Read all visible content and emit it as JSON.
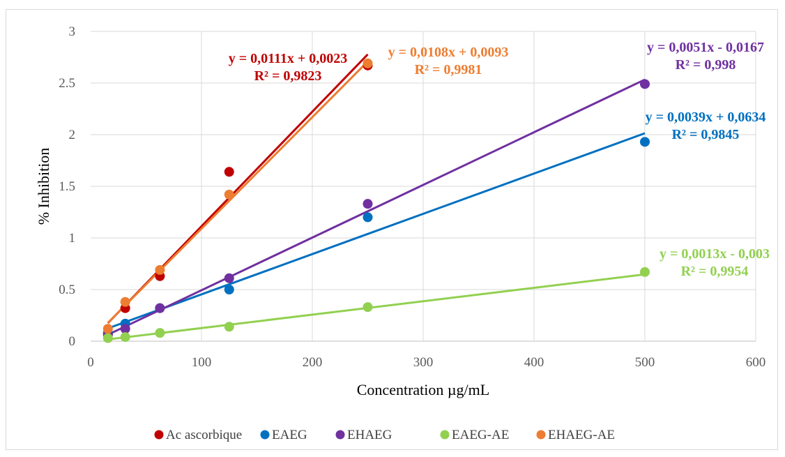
{
  "chart_data": {
    "type": "scatter",
    "title": "",
    "xlabel": "Concentration µg/mL",
    "ylabel": "% Inhibition",
    "xlim": [
      0,
      600
    ],
    "ylim": [
      0,
      3
    ],
    "x_ticks": [
      "0",
      "100",
      "200",
      "300",
      "400",
      "500",
      "600"
    ],
    "y_ticks": [
      "0",
      "0.5",
      "1",
      "1.5",
      "2",
      "2.5",
      "3"
    ],
    "grid": true,
    "legend_position": "bottom",
    "series": [
      {
        "name": "Ac ascorbique",
        "color": "#C00000",
        "x": [
          15.6,
          31.25,
          62.5,
          125,
          250
        ],
        "y": [
          0.07,
          0.32,
          0.63,
          1.64,
          2.67
        ],
        "trendline": {
          "slope": 0.0111,
          "intercept": 0.0023,
          "x_range": [
            15.6,
            250
          ]
        },
        "equation": "y = 0,0111x + 0,0023",
        "r2": "R² = 0,9823"
      },
      {
        "name": "EAEG",
        "color": "#0070C0",
        "x": [
          15.6,
          31.25,
          62.5,
          125,
          250,
          500
        ],
        "y": [
          0.08,
          0.17,
          0.32,
          0.5,
          1.2,
          1.93
        ],
        "trendline": {
          "slope": 0.0039,
          "intercept": 0.0634,
          "x_range": [
            15.6,
            500
          ]
        },
        "equation": "y = 0,0039x + 0,0634",
        "r2": "R² = 0,9845"
      },
      {
        "name": "EHAEG",
        "color": "#7030A0",
        "x": [
          15.6,
          31.25,
          62.5,
          125,
          250,
          500
        ],
        "y": [
          0.06,
          0.12,
          0.32,
          0.61,
          1.33,
          2.49
        ],
        "trendline": {
          "slope": 0.0051,
          "intercept": -0.0167,
          "x_range": [
            15.6,
            500
          ]
        },
        "equation": "y = 0,0051x - 0,0167",
        "r2": "R² = 0,998"
      },
      {
        "name": "EAEG-AE",
        "color": "#92D050",
        "x": [
          15.6,
          31.25,
          62.5,
          125,
          250,
          500
        ],
        "y": [
          0.03,
          0.04,
          0.08,
          0.14,
          0.33,
          0.67
        ],
        "trendline": {
          "slope": 0.0013,
          "intercept": -0.003,
          "x_range": [
            15.6,
            500
          ]
        },
        "equation": "y = 0,0013x - 0,003",
        "r2": "R² = 0,9954"
      },
      {
        "name": "EHAEG-AE",
        "color": "#ED7D31",
        "x": [
          15.6,
          31.25,
          62.5,
          125,
          250
        ],
        "y": [
          0.12,
          0.38,
          0.69,
          1.42,
          2.69
        ],
        "trendline": {
          "slope": 0.0108,
          "intercept": 0.0093,
          "x_range": [
            15.6,
            250
          ]
        },
        "equation": "y = 0,0108x + 0,0093",
        "r2": "R² = 0,9981"
      }
    ]
  }
}
